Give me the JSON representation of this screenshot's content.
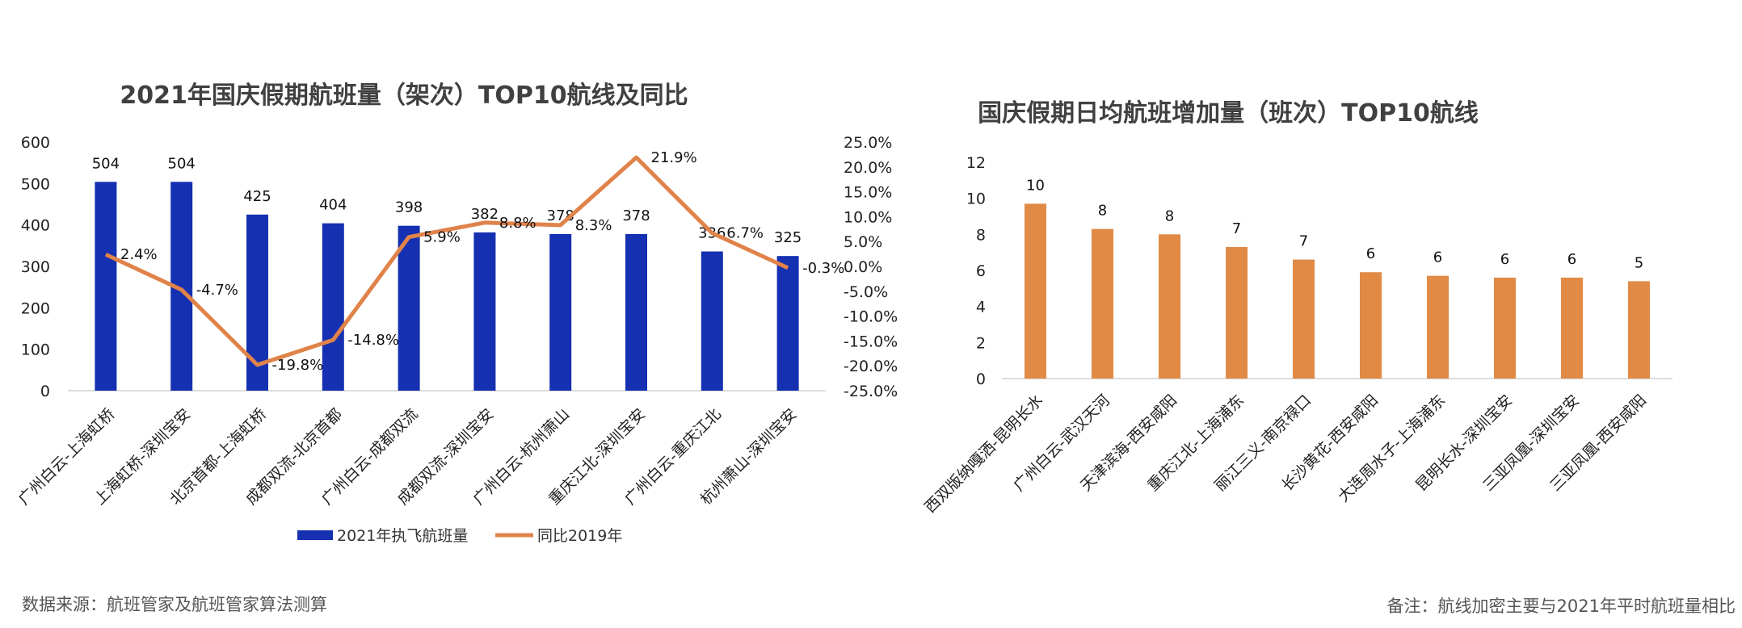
{
  "chart_data": [
    {
      "type": "bar",
      "title": "2021年国庆假期航班量（架次）TOP10航线及同比",
      "categories": [
        "广州白云-上海虹桥",
        "上海虹桥-深圳宝安",
        "北京首都-上海虹桥",
        "成都双流-北京首都",
        "广州白云-成都双流",
        "成都双流-深圳宝安",
        "广州白云-杭州萧山",
        "重庆江北-深圳宝安",
        "广州白云-重庆江北",
        "杭州萧山-深圳宝安"
      ],
      "series": [
        {
          "name": "2021年执飞航班量",
          "type": "bar",
          "color": "#1530b0",
          "values": [
            504,
            504,
            425,
            404,
            398,
            382,
            378,
            378,
            336,
            325
          ],
          "labels": [
            "504",
            "504",
            "425",
            "404",
            "398",
            "382",
            "378",
            "378",
            "336",
            "325"
          ]
        },
        {
          "name": "同比2019年",
          "type": "line",
          "axis": "right",
          "color": "#e0834a",
          "values": [
            2.4,
            -4.7,
            -19.8,
            -14.8,
            5.9,
            8.8,
            8.3,
            21.9,
            6.7,
            -0.3
          ],
          "labels": [
            "2.4%",
            "-4.7%",
            "-19.8%",
            "-14.8%",
            "5.9%",
            "8.8%",
            "8.3%",
            "21.9%",
            "6.7%",
            "-0.3%"
          ]
        }
      ],
      "ylim": [
        0,
        600
      ],
      "yticks": [
        "0",
        "100",
        "200",
        "300",
        "400",
        "500",
        "600"
      ],
      "y2lim": [
        -25,
        25
      ],
      "y2ticks": [
        "-25.0%",
        "-20.0%",
        "-15.0%",
        "-10.0%",
        "-5.0%",
        "0.0%",
        "5.0%",
        "10.0%",
        "15.0%",
        "20.0%",
        "25.0%"
      ],
      "legend": [
        "2021年执飞航班量",
        "同比2019年"
      ],
      "legend_position": "bottom",
      "grid": false
    },
    {
      "type": "bar",
      "title": "国庆假期日均航班增加量（班次）TOP10航线",
      "categories": [
        "西双版纳嘎洒-昆明长水",
        "广州白云-武汉天河",
        "天津滨海-西安咸阳",
        "重庆江北-上海浦东",
        "丽江三义-南京禄口",
        "长沙黄花-西安咸阳",
        "大连周水子-上海浦东",
        "昆明长水-深圳宝安",
        "三亚凤凰-深圳宝安",
        "三亚凤凰-西安咸阳"
      ],
      "series": [
        {
          "name": "",
          "type": "bar",
          "color": "#e08a45",
          "values": [
            9.7,
            8.3,
            8.0,
            7.3,
            6.6,
            5.9,
            5.7,
            5.6,
            5.6,
            5.4
          ],
          "labels": [
            "10",
            "8",
            "8",
            "7",
            "7",
            "6",
            "6",
            "6",
            "6",
            "5"
          ]
        }
      ],
      "ylim": [
        0,
        12
      ],
      "yticks": [
        "0",
        "2",
        "4",
        "6",
        "8",
        "10",
        "12"
      ],
      "grid": false
    }
  ],
  "footer": {
    "source": "数据来源：航班管家及航班管家算法测算",
    "note": "备注：航线加密主要与2021年平时航班量相比"
  }
}
